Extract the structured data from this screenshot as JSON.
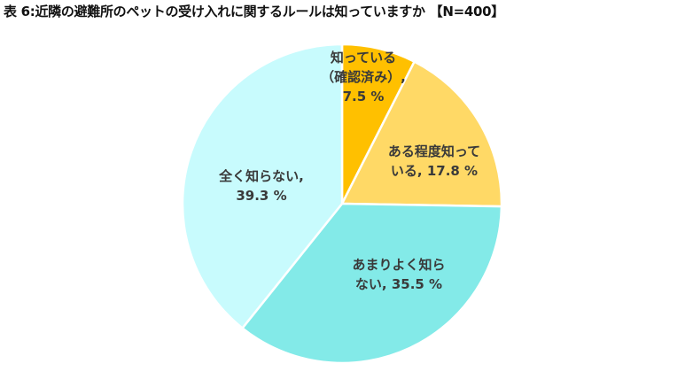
{
  "title": "表 6:近隣の避難所のペットの受け入れに関するルールは知っていますか 【N=400】",
  "chart_data": {
    "type": "pie",
    "title": "表 6:近隣の避難所のペットの受け入れに関するルールは知っていますか 【N=400】",
    "n": 400,
    "start_angle": "12 o'clock, clockwise",
    "slices": [
      {
        "label": "知っている（確認済み）",
        "value": 7.5,
        "color": "#ffc000"
      },
      {
        "label": "ある程度知っている",
        "value": 17.8,
        "color": "#ffd966"
      },
      {
        "label": "あまりよく知らない",
        "value": 35.5,
        "color": "#83eae8"
      },
      {
        "label": "全く知らない",
        "value": 39.3,
        "color": "#c8fbfd"
      }
    ],
    "unit": "%",
    "legend": "none (data labels on slices)"
  },
  "labels": {
    "s0": {
      "line1": "知っている",
      "line2": "（確認済み）,",
      "line3": "7.5 %"
    },
    "s1": {
      "line1": "ある程度知って",
      "line2": "いる, 17.8 %"
    },
    "s2": {
      "line1": "あまりよく知ら",
      "line2": "ない, 35.5 %"
    },
    "s3": {
      "line1": "全く知らない,",
      "line2": "39.3 %"
    }
  }
}
